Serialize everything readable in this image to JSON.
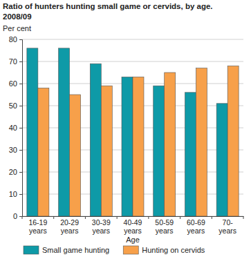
{
  "chart_data": {
    "type": "bar",
    "title": "Ratio of hunters hunting small game or cervids, by age.",
    "subtitle": "2008/09",
    "y_label": "Per cent",
    "x_label": "Age",
    "categories": [
      "16-19 years",
      "20-29 years",
      "30-39 years",
      "40-49 years",
      "50-59 years",
      "60-69 years",
      "70- years"
    ],
    "series": [
      {
        "name": "Small game hunting",
        "color": "#0e9aa7",
        "values": [
          76,
          76,
          69,
          63,
          59,
          56,
          51
        ]
      },
      {
        "name": "Hunting on cervids",
        "color": "#f7a04a",
        "values": [
          58,
          55,
          59,
          63,
          65,
          67,
          68
        ]
      }
    ],
    "ylim": [
      0,
      80
    ],
    "yticks": [
      0,
      10,
      20,
      30,
      40,
      50,
      60,
      70,
      80
    ],
    "grid": true,
    "legend": "bottom"
  }
}
